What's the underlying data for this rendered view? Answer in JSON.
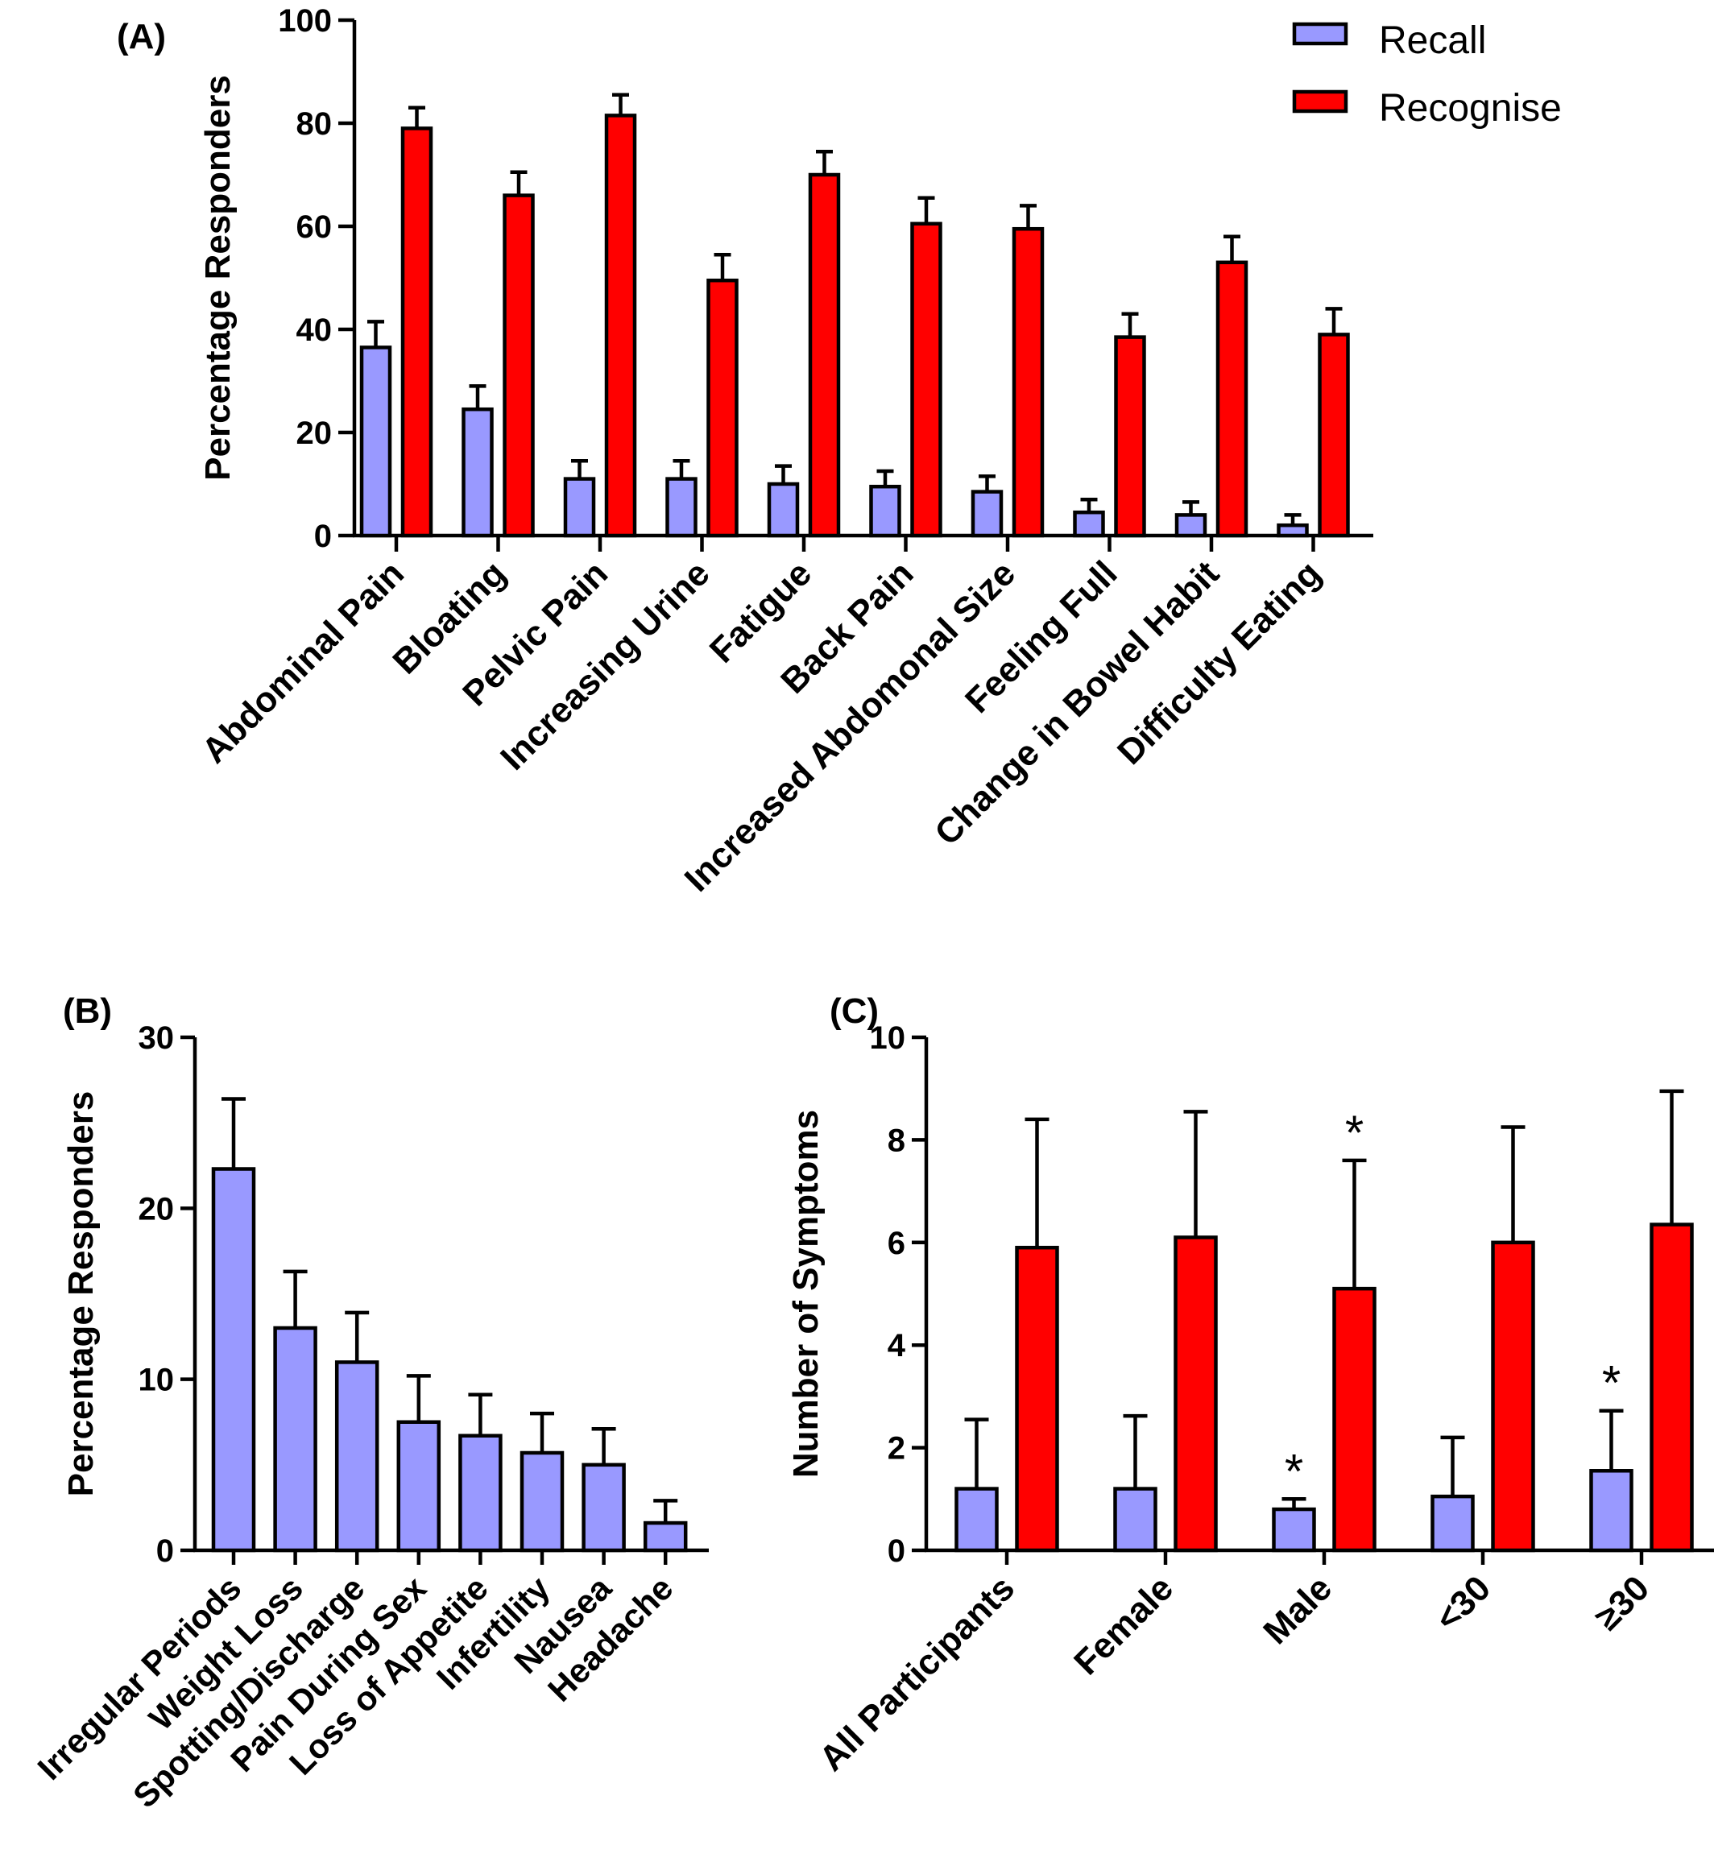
{
  "colors": {
    "recall": "#9999ff",
    "recognise": "#ff0000",
    "axis": "#000000"
  },
  "legend": [
    {
      "label": "Recall",
      "color": "#9999ff"
    },
    {
      "label": "Recognise",
      "color": "#ff0000"
    }
  ],
  "chart_data": [
    {
      "panel": "(A)",
      "type": "bar",
      "ylabel": "Percentage Responders",
      "ylim": [
        0,
        100
      ],
      "yticks": [
        0,
        20,
        40,
        60,
        80,
        100
      ],
      "categories": [
        "Abdominal Pain",
        "Bloating",
        "Pelvic Pain",
        "Increasing Urine",
        "Fatigue",
        "Back Pain",
        "Increased Abdomonal Size",
        "Feeling Full",
        "Change in Bowel Habit",
        "Difficulty Eating"
      ],
      "series": [
        {
          "name": "Recall",
          "values": [
            36.5,
            24.5,
            11,
            11,
            10,
            9.5,
            8.5,
            4.5,
            4,
            2
          ],
          "errors": [
            5,
            4.5,
            3.5,
            3.5,
            3.5,
            3,
            3,
            2.5,
            2.5,
            2
          ]
        },
        {
          "name": "Recognise",
          "values": [
            79,
            66,
            81.5,
            49.5,
            70,
            60.5,
            59.5,
            38.5,
            53,
            39
          ],
          "errors": [
            4,
            4.5,
            4,
            5,
            4.5,
            5,
            4.5,
            4.5,
            5,
            5
          ]
        }
      ],
      "legend_position": "top-right",
      "grid": false
    },
    {
      "panel": "(B)",
      "type": "bar",
      "ylabel": "Percentage Responders",
      "ylim": [
        0,
        30
      ],
      "yticks": [
        0,
        10,
        20,
        30
      ],
      "categories": [
        "Irregular Periods",
        "Weight Loss",
        "Spotting/Discharge",
        "Pain During Sex",
        "Loss of Appetite",
        "Infertility",
        "Nausea",
        "Headache"
      ],
      "series": [
        {
          "name": "Recall",
          "values": [
            22.3,
            13,
            11,
            7.5,
            6.7,
            5.7,
            5,
            1.6
          ],
          "errors": [
            4.1,
            3.3,
            2.9,
            2.7,
            2.4,
            2.3,
            2.1,
            1.3
          ]
        }
      ],
      "grid": false
    },
    {
      "panel": "(C)",
      "type": "bar",
      "ylabel": "Number of Symptoms",
      "ylim": [
        0,
        10
      ],
      "yticks": [
        0,
        2,
        4,
        6,
        8,
        10
      ],
      "categories": [
        "All Participants",
        "Female",
        "Male",
        "<30",
        "≥30"
      ],
      "series": [
        {
          "name": "Recall",
          "values": [
            1.2,
            1.2,
            0.8,
            1.05,
            1.55
          ],
          "errors": [
            1.35,
            1.42,
            0.2,
            1.15,
            1.17
          ]
        },
        {
          "name": "Recognise",
          "values": [
            5.9,
            6.1,
            5.1,
            6.0,
            6.35
          ],
          "errors": [
            2.5,
            2.45,
            2.5,
            2.25,
            2.6
          ]
        }
      ],
      "annotations": [
        {
          "text": "*",
          "category": "Male",
          "series": "Recall"
        },
        {
          "text": "*",
          "category": "Male",
          "series": "Recognise"
        },
        {
          "text": "*",
          "category": "≥30",
          "series": "Recall"
        }
      ],
      "grid": false
    }
  ]
}
